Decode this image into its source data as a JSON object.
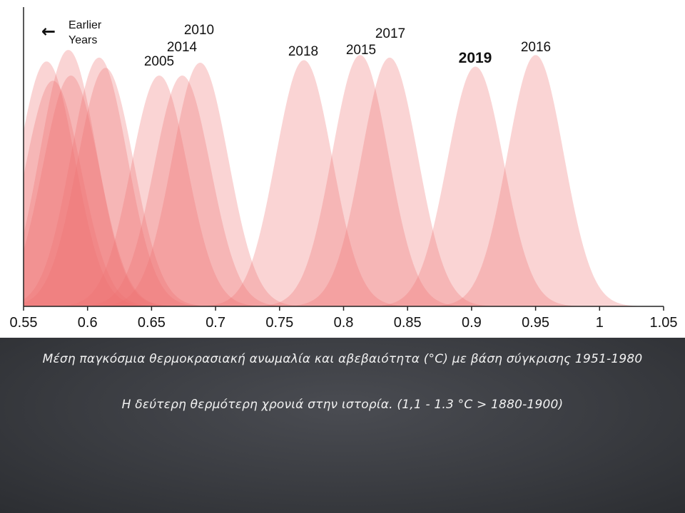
{
  "chart_data": {
    "type": "area",
    "description_note": "",
    "xlim": [
      0.55,
      1.05
    ],
    "xticks": [
      "0.55",
      "0.6",
      "0.65",
      "0.7",
      "0.75",
      "0.8",
      "0.85",
      "0.9",
      "0.95",
      "1",
      "1.05"
    ],
    "xtick_values": [
      0.55,
      0.6,
      0.65,
      0.7,
      0.75,
      0.8,
      0.85,
      0.9,
      0.95,
      1.0,
      1.05
    ],
    "grid": false,
    "series_color": "#ef6f6f",
    "highlight_label": "2019",
    "annotation": {
      "arrow": "←",
      "text_line1": "Earlier",
      "text_line2": "Years"
    },
    "series": [
      {
        "name": "",
        "mean": 0.568,
        "peak": 0.955
      },
      {
        "name": "",
        "mean": 0.573,
        "peak": 0.88
      },
      {
        "name": "",
        "mean": 0.585,
        "peak": 1.0
      },
      {
        "name": "",
        "mean": 0.587,
        "peak": 0.9
      },
      {
        "name": "",
        "mean": 0.609,
        "peak": 0.97
      },
      {
        "name": "",
        "mean": 0.614,
        "peak": 0.93
      },
      {
        "name": "2005",
        "mean": 0.656,
        "peak": 0.9
      },
      {
        "name": "2014",
        "mean": 0.674,
        "peak": 0.9
      },
      {
        "name": "2010",
        "mean": 0.688,
        "peak": 0.95
      },
      {
        "name": "2018",
        "mean": 0.769,
        "peak": 0.96
      },
      {
        "name": "2015",
        "mean": 0.813,
        "peak": 0.98
      },
      {
        "name": "2017",
        "mean": 0.836,
        "peak": 0.97
      },
      {
        "name": "2019",
        "mean": 0.903,
        "peak": 0.935
      },
      {
        "name": "2016",
        "mean": 0.95,
        "peak": 0.98
      }
    ]
  },
  "captions": {
    "line1": "Μέση παγκόσμια θερμοκρασιακή ανωμαλία και αβεβαιότητα (°C) με βάση σύγκρισης 1951-1980",
    "line2": "Η δεύτερη θερμότερη χρονιά στην ιστορία. (1,1 - 1.3 °C > 1880-1900)"
  }
}
